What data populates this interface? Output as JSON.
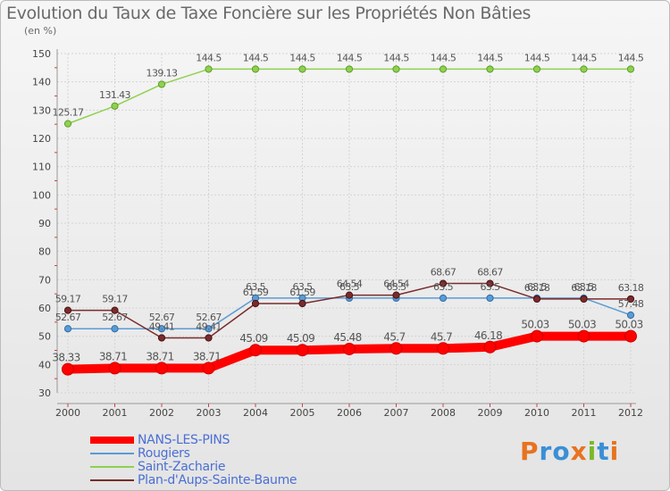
{
  "header": {
    "title": "Evolution du Taux de Taxe Foncière sur les Propriétés Non Bâties",
    "subtitle": "(en %)"
  },
  "branding": {
    "logo_text": "Proxiti",
    "logo_colors": [
      "#e8731f",
      "#3b8fd6",
      "#3b8fd6",
      "#e8731f",
      "#7ab929",
      "#3b8fd6",
      "#e8731f"
    ]
  },
  "chart_data": {
    "type": "line",
    "title": "Evolution du Taux de Taxe Foncière sur les Propriétés Non Bâties",
    "ylabel": "(en %)",
    "xlabel": "",
    "x": [
      "2000",
      "2001",
      "2002",
      "2003",
      "2004",
      "2005",
      "2006",
      "2007",
      "2008",
      "2009",
      "2010",
      "2011",
      "2012"
    ],
    "ylim": [
      30,
      150
    ],
    "yticks": [
      "30",
      "40",
      "50",
      "60",
      "70",
      "80",
      "90",
      "100",
      "110",
      "120",
      "130",
      "140",
      "150"
    ],
    "grid": true,
    "legend_position": "bottom-left",
    "series": [
      {
        "name": "NANS-LES-PINS",
        "color": "#ff0000",
        "values": [
          38.33,
          38.71,
          38.71,
          38.71,
          45.09,
          45.09,
          45.48,
          45.7,
          45.7,
          46.18,
          50.03,
          50.03,
          50.03
        ],
        "labels": [
          "38.33",
          "38.71",
          "38.71",
          "38.71",
          "45.09",
          "45.09",
          "45.48",
          "45.7",
          "45.7",
          "46.18",
          "50.03",
          "50.03",
          "50.03"
        ]
      },
      {
        "name": "Rougiers",
        "color": "#5b9bd5",
        "values": [
          52.67,
          52.67,
          52.67,
          52.67,
          63.5,
          63.5,
          63.5,
          63.5,
          63.5,
          63.5,
          63.5,
          63.5,
          57.48
        ],
        "labels": [
          "52.67",
          "52.67",
          "52.67",
          "52.67",
          "63.5",
          "63.5",
          "63.5",
          "63.5",
          "63.5",
          "63.5",
          "63.5",
          "63.5",
          "57.48"
        ]
      },
      {
        "name": "Saint-Zacharie",
        "color": "#8fd14f",
        "values": [
          125.17,
          131.43,
          139.13,
          144.5,
          144.5,
          144.5,
          144.5,
          144.5,
          144.5,
          144.5,
          144.5,
          144.5,
          144.5
        ],
        "labels": [
          "125.17",
          "131.43",
          "139.13",
          "144.5",
          "144.5",
          "144.5",
          "144.5",
          "144.5",
          "144.5",
          "144.5",
          "144.5",
          "144.5",
          "144.5"
        ]
      },
      {
        "name": "Plan-d'Aups-Sainte-Baume",
        "color": "#7a2b2b",
        "values": [
          59.17,
          59.17,
          49.41,
          49.41,
          61.59,
          61.59,
          64.54,
          64.54,
          68.67,
          68.67,
          63.18,
          63.18,
          63.18
        ],
        "labels": [
          "59.17",
          "59.17",
          "49.41",
          "49.41",
          "61.59",
          "61.59",
          "64.54",
          "64.54",
          "68.67",
          "68.67",
          "63.18",
          "63.18",
          "63.18"
        ]
      }
    ]
  }
}
